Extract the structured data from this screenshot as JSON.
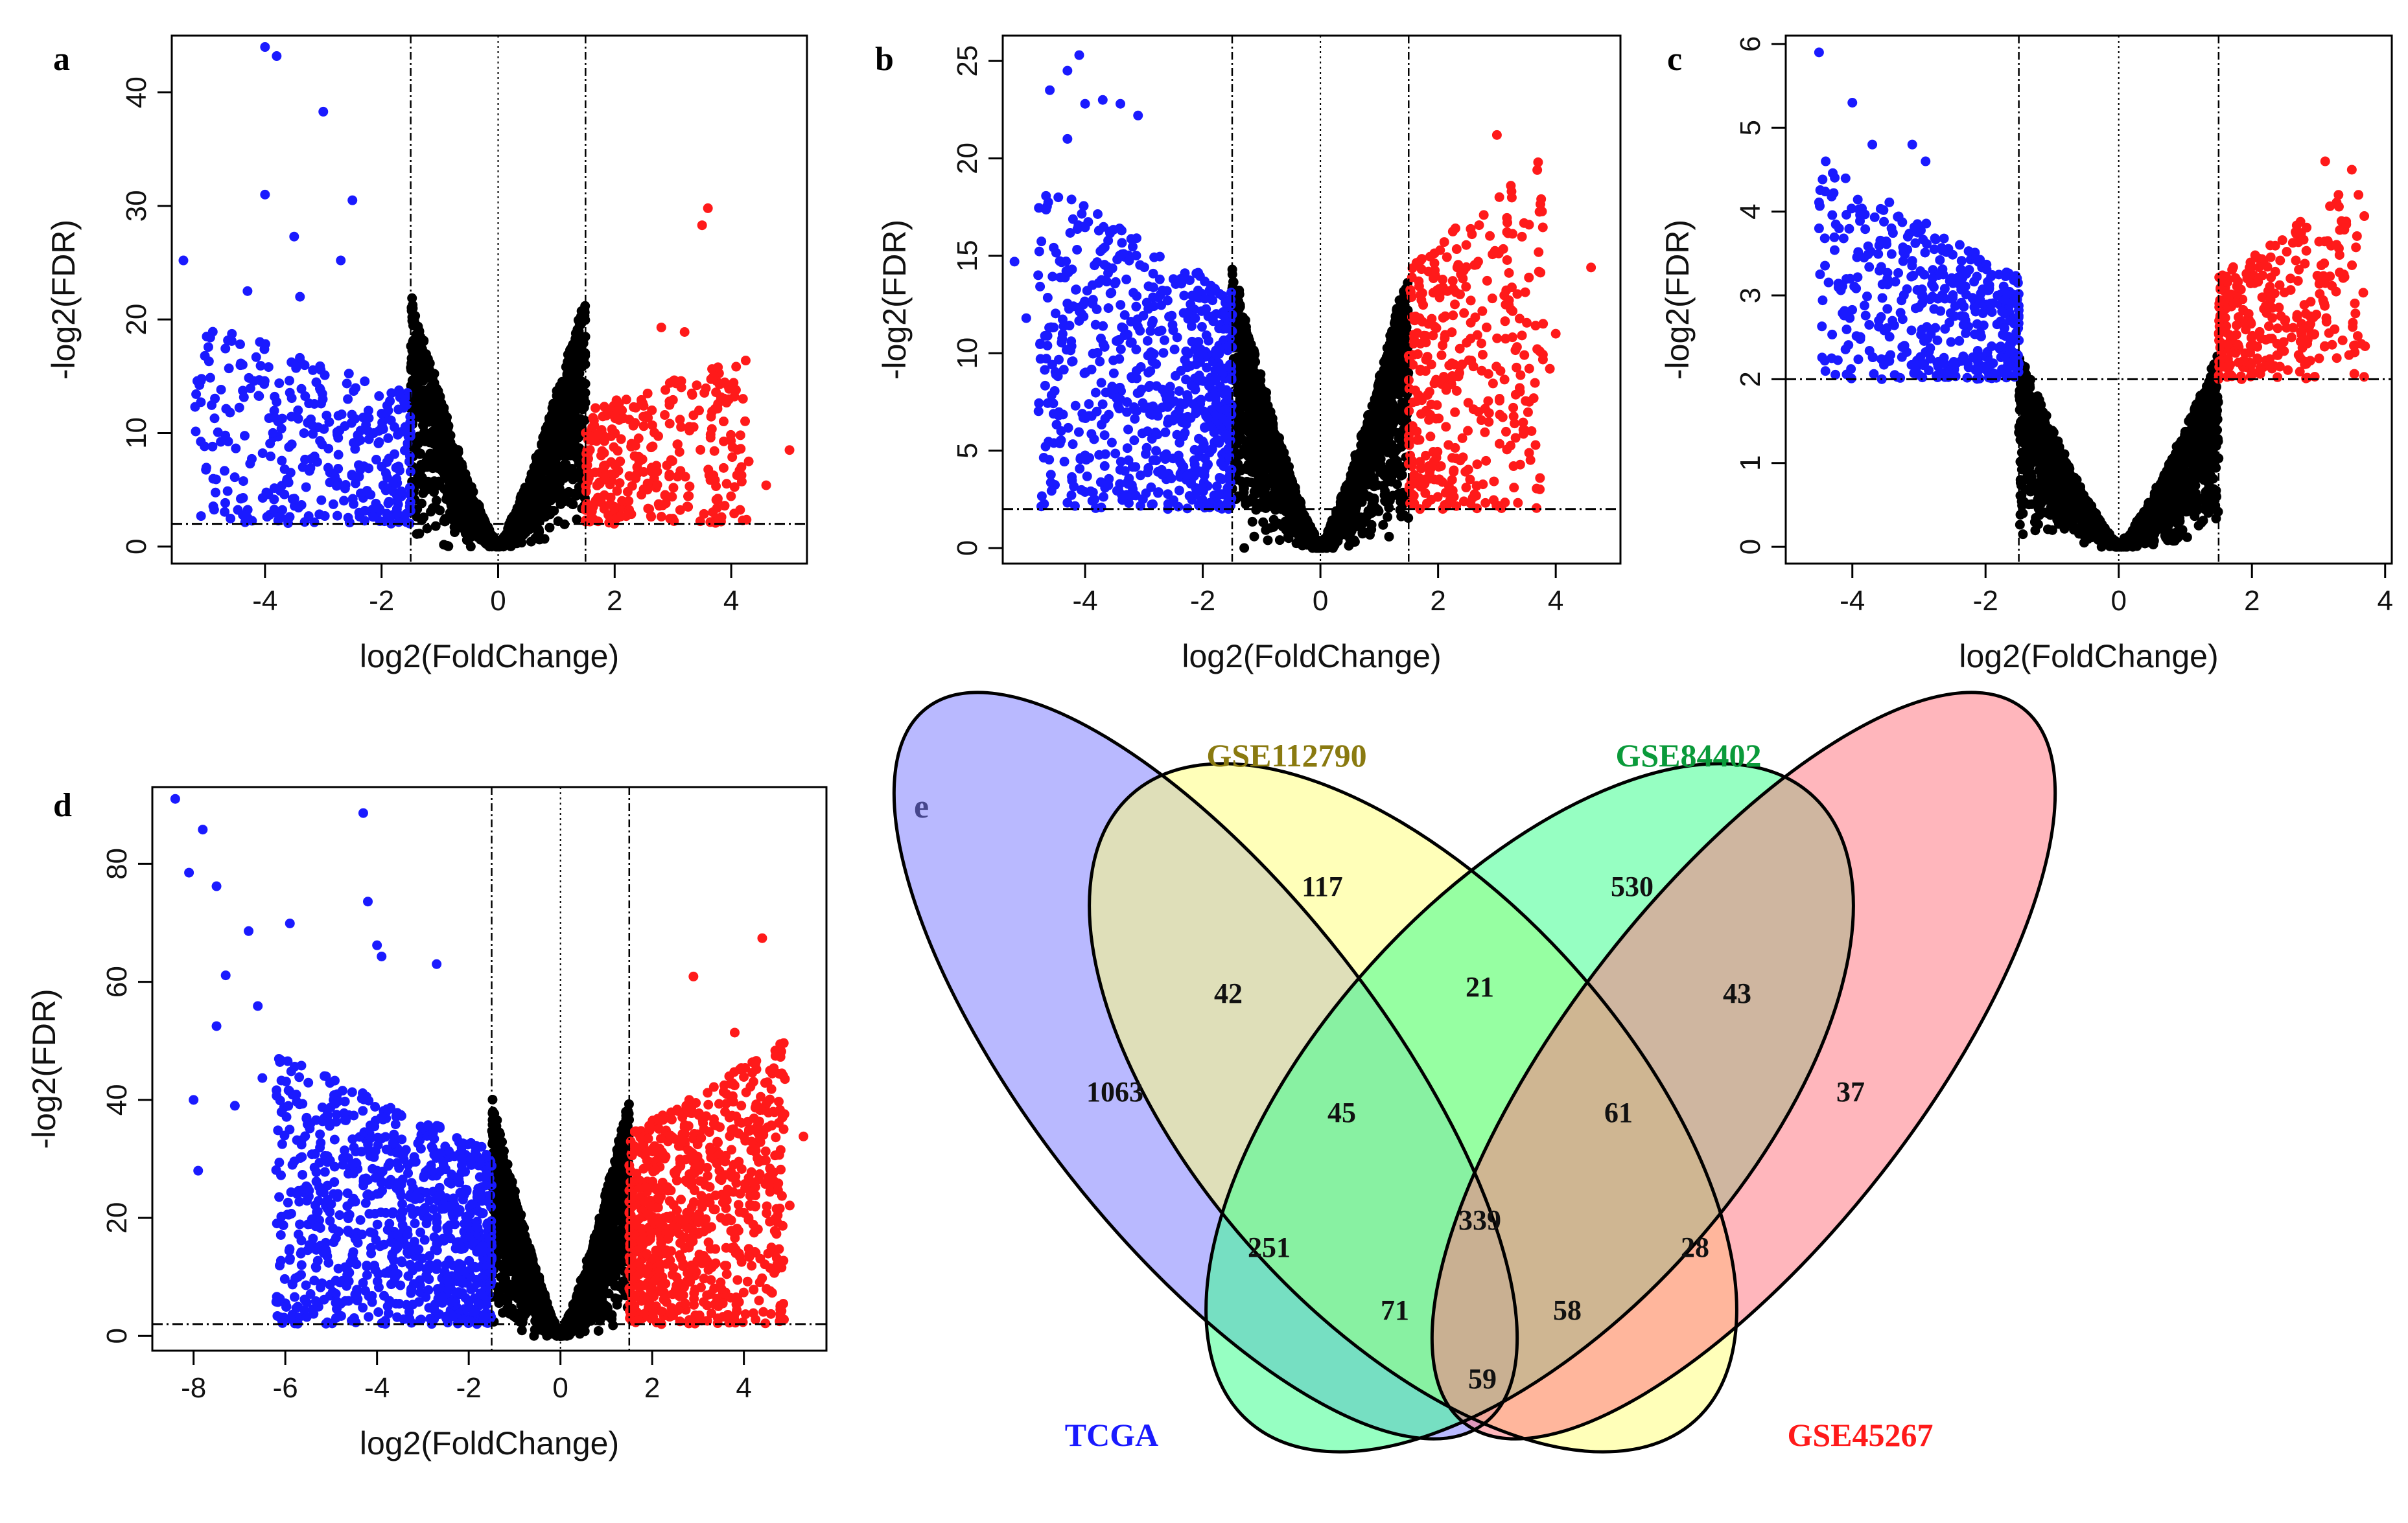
{
  "colors": {
    "down": "#1a1aff",
    "up": "#ff1a1a",
    "neutral": "#000000",
    "tcga": "#8080ff",
    "gse112790": "#ffff80",
    "gse84402": "#40ff90",
    "gse45267": "#ff7a85",
    "label_gse112790": "#8a7a10",
    "label_gse84402": "#0a9a3a",
    "label_tcga": "#1a1aff",
    "label_gse45267": "#ff1a1a"
  },
  "chart_data": [
    {
      "type": "scatter",
      "panel": "a",
      "xlabel": "log2(FoldChange)",
      "ylabel": "-log2(FDR)",
      "xlim": [
        -5.6,
        5.3
      ],
      "ylim": [
        -1.5,
        45
      ],
      "xticks": [
        -4,
        -2,
        0,
        2,
        4
      ],
      "yticks": [
        0,
        10,
        20,
        30,
        40
      ],
      "fc_cutoff": 1.5,
      "fdr_line": 2,
      "max_sig_y": 22,
      "n_points": 1600,
      "seed": 11,
      "highlights": [
        [
          -4,
          44
        ],
        [
          -3.8,
          43.2
        ],
        [
          -3,
          38.3
        ],
        [
          -4,
          31
        ],
        [
          -3.5,
          27.3
        ],
        [
          -2.5,
          30.5
        ],
        [
          -5.4,
          25.2
        ],
        [
          -4.3,
          22.5
        ],
        [
          -3.4,
          22
        ],
        [
          -2.7,
          25.2
        ],
        [
          -5,
          18.5
        ],
        [
          -5.2,
          12.3
        ],
        [
          -4.6,
          11.8
        ],
        [
          3.6,
          29.8
        ],
        [
          3.5,
          28.3
        ],
        [
          4.3,
          7.5
        ],
        [
          5,
          8.5
        ],
        [
          4.6,
          5.4
        ],
        [
          2.8,
          19.3
        ],
        [
          3.2,
          18.9
        ]
      ],
      "series": [
        {
          "name": "down",
          "x_range": [
            -5.2,
            -1.5
          ],
          "max_y": 20,
          "count": 340
        },
        {
          "name": "up",
          "x_range": [
            1.5,
            4.3
          ],
          "max_y": 17,
          "count": 300
        }
      ]
    },
    {
      "type": "scatter",
      "panel": "b",
      "xlabel": "log2(FoldChange)",
      "ylabel": "-log2(FDR)",
      "xlim": [
        -5.4,
        5.1
      ],
      "ylim": [
        -0.8,
        26.3
      ],
      "xticks": [
        -4,
        -2,
        0,
        2,
        4
      ],
      "yticks": [
        0,
        5,
        10,
        15,
        20,
        25
      ],
      "fc_cutoff": 1.5,
      "fdr_line": 2,
      "max_sig_y": 14.5,
      "n_points": 1800,
      "seed": 23,
      "highlights": [
        [
          -4.1,
          25.3
        ],
        [
          -4.3,
          24.5
        ],
        [
          -4.6,
          23.5
        ],
        [
          -4,
          22.8
        ],
        [
          -3.7,
          23
        ],
        [
          -3.4,
          22.8
        ],
        [
          -3.1,
          22.2
        ],
        [
          -4.3,
          21
        ],
        [
          -5.2,
          14.7
        ],
        [
          -5,
          11.8
        ],
        [
          3,
          21.2
        ],
        [
          3.7,
          19.8
        ],
        [
          4.6,
          14.4
        ],
        [
          4,
          11
        ],
        [
          3.9,
          9.2
        ],
        [
          2,
          3.5
        ]
      ],
      "series": [
        {
          "name": "down",
          "x_range": [
            -4.8,
            -1.5
          ],
          "max_y": 19,
          "count": 700
        },
        {
          "name": "up",
          "x_range": [
            1.5,
            3.8
          ],
          "max_y": 20,
          "count": 360
        }
      ]
    },
    {
      "type": "scatter",
      "panel": "c",
      "xlabel": "log2(FoldChange)",
      "ylabel": "-log2(FDR)",
      "xlim": [
        -5,
        4.1
      ],
      "ylim": [
        -0.2,
        6.1
      ],
      "xticks": [
        -4,
        -2,
        0,
        2,
        4
      ],
      "yticks": [
        0,
        1,
        2,
        3,
        4,
        5,
        6
      ],
      "fc_cutoff": 1.5,
      "fdr_line": 2,
      "max_sig_y": 2.3,
      "n_points": 1800,
      "seed": 37,
      "highlights": [
        [
          -4.5,
          5.9
        ],
        [
          -4,
          5.3
        ],
        [
          -4.4,
          4.6
        ],
        [
          -3.7,
          4.8
        ],
        [
          -3.1,
          4.8
        ],
        [
          -2.9,
          4.6
        ],
        [
          -4.5,
          3.8
        ],
        [
          -4.2,
          3.8
        ],
        [
          3.1,
          4.6
        ],
        [
          3.5,
          4.5
        ],
        [
          3.3,
          4.2
        ],
        [
          3.6,
          4.2
        ],
        [
          1.8,
          2.2
        ]
      ],
      "series": [
        {
          "name": "down",
          "x_range": [
            -4.5,
            -1.5
          ],
          "max_y": 4.6,
          "count": 420
        },
        {
          "name": "up",
          "x_range": [
            1.5,
            3.7
          ],
          "max_y": 4.4,
          "count": 300
        }
      ]
    },
    {
      "type": "scatter",
      "panel": "d",
      "xlabel": "log2(FoldChange)",
      "ylabel": "-log2(FDR)",
      "xlim": [
        -8.9,
        5.8
      ],
      "ylim": [
        -2.5,
        93
      ],
      "xticks": [
        -8,
        -6,
        -4,
        -2,
        0,
        2,
        4
      ],
      "yticks": [
        0,
        20,
        40,
        60,
        80
      ],
      "fc_cutoff": 1.5,
      "fdr_line": 2,
      "max_sig_y": 40,
      "n_points": 1900,
      "seed": 51,
      "highlights": [
        [
          -8.4,
          91
        ],
        [
          -8.1,
          78.5
        ],
        [
          -7.8,
          85.8
        ],
        [
          -7.5,
          76.2
        ],
        [
          -6.8,
          68.6
        ],
        [
          -4.3,
          88.6
        ],
        [
          -4.2,
          73.6
        ],
        [
          -4,
          66.2
        ],
        [
          -3.9,
          64.3
        ],
        [
          -5.9,
          69.9
        ],
        [
          -7.3,
          61.1
        ],
        [
          -7.5,
          52.5
        ],
        [
          -6.6,
          55.9
        ],
        [
          -7.1,
          39
        ],
        [
          -7.9,
          28
        ],
        [
          -8,
          40
        ],
        [
          -6.5,
          43.7
        ],
        [
          -6.2,
          28.1
        ],
        [
          -2.7,
          63
        ],
        [
          4.4,
          67.4
        ],
        [
          2.9,
          60.9
        ],
        [
          3.8,
          51.4
        ],
        [
          5.3,
          33.8
        ],
        [
          5,
          22.1
        ],
        [
          4.6,
          26.6
        ],
        [
          4.7,
          17.5
        ]
      ],
      "series": [
        {
          "name": "down",
          "x_range": [
            -6.2,
            -1.5
          ],
          "max_y": 48,
          "count": 900
        },
        {
          "name": "up",
          "x_range": [
            1.5,
            4.9
          ],
          "max_y": 50,
          "count": 800
        }
      ]
    },
    {
      "type": "venn",
      "panel": "e",
      "sets": [
        "TCGA",
        "GSE112790",
        "GSE84402",
        "GSE45267"
      ],
      "regions": [
        {
          "sets": [
            "TCGA"
          ],
          "value": 1063
        },
        {
          "sets": [
            "GSE112790"
          ],
          "value": 117
        },
        {
          "sets": [
            "GSE84402"
          ],
          "value": 530
        },
        {
          "sets": [
            "GSE45267"
          ],
          "value": 37
        },
        {
          "sets": [
            "TCGA",
            "GSE112790"
          ],
          "value": 42
        },
        {
          "sets": [
            "GSE112790",
            "GSE84402"
          ],
          "value": 21
        },
        {
          "sets": [
            "GSE84402",
            "GSE45267"
          ],
          "value": 43
        },
        {
          "sets": [
            "TCGA",
            "GSE112790",
            "GSE84402"
          ],
          "value": 45
        },
        {
          "sets": [
            "GSE112790",
            "GSE84402",
            "GSE45267"
          ],
          "value": 61
        },
        {
          "sets": [
            "TCGA",
            "GSE84402"
          ],
          "value": 251
        },
        {
          "sets": [
            "TCGA",
            "GSE112790",
            "GSE84402",
            "GSE45267"
          ],
          "value": 339
        },
        {
          "sets": [
            "GSE112790",
            "GSE45267"
          ],
          "value": 28
        },
        {
          "sets": [
            "TCGA",
            "GSE84402",
            "GSE45267"
          ],
          "value": 71
        },
        {
          "sets": [
            "TCGA",
            "GSE112790",
            "GSE45267"
          ],
          "value": 58
        },
        {
          "sets": [
            "TCGA",
            "GSE45267"
          ],
          "value": 59
        }
      ]
    }
  ]
}
